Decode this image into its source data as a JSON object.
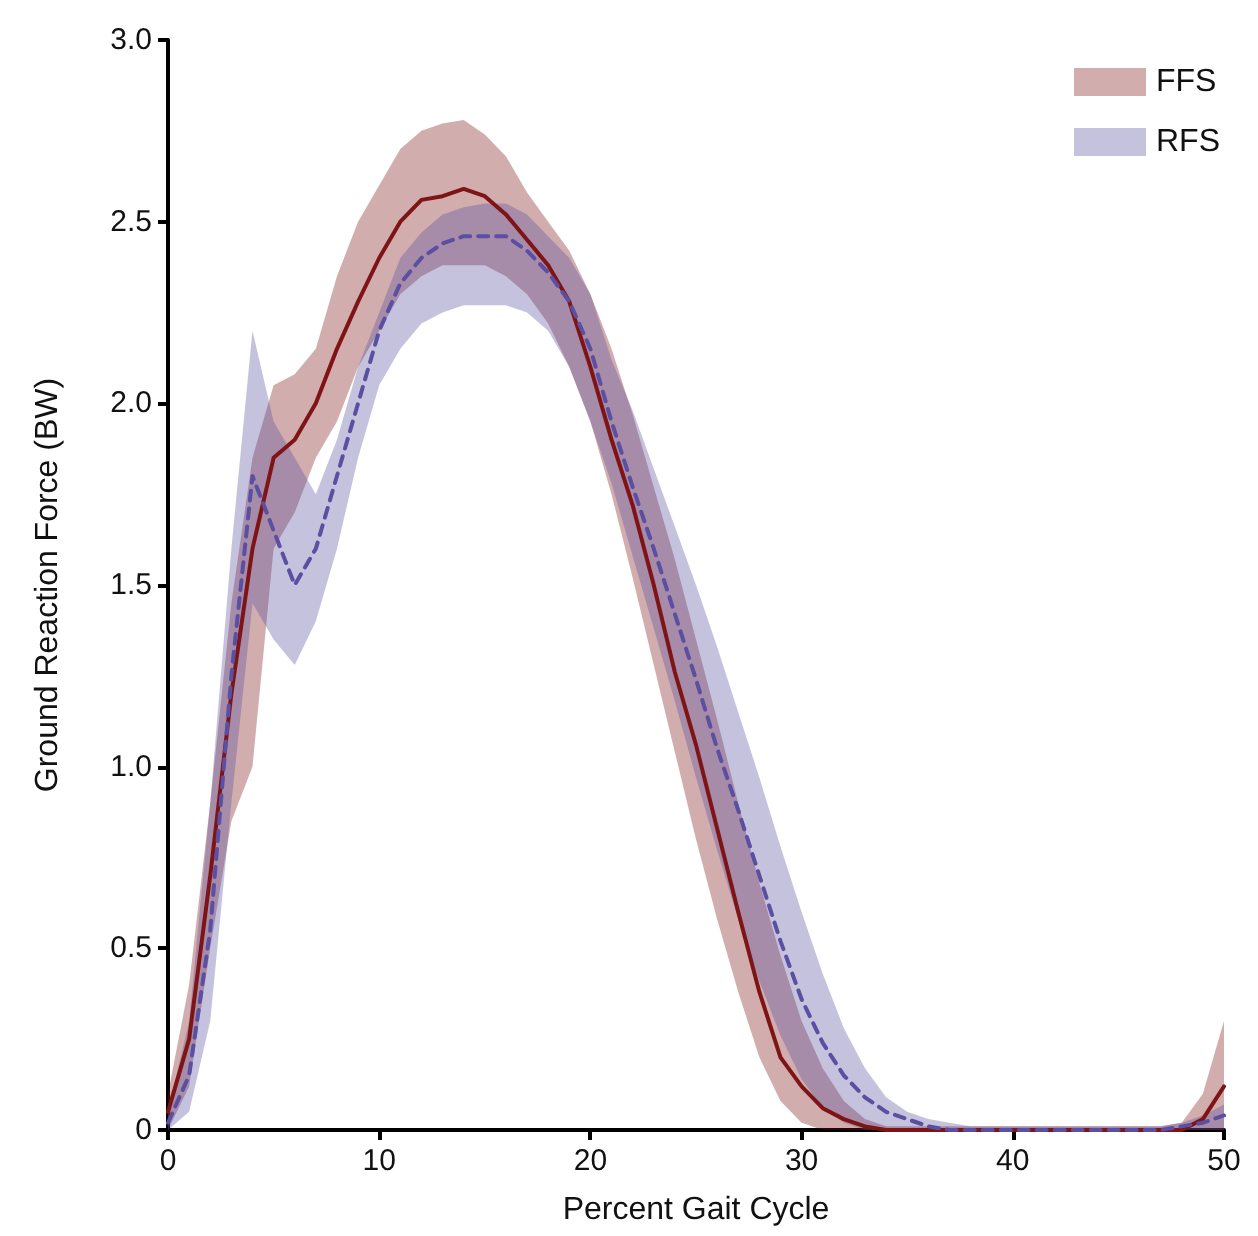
{
  "chart_data": {
    "type": "line",
    "xlabel": "Percent Gait Cycle",
    "ylabel": "Ground Reaction Force (BW)",
    "x": [
      0,
      1,
      2,
      3,
      4,
      5,
      6,
      7,
      8,
      9,
      10,
      11,
      12,
      13,
      14,
      15,
      16,
      17,
      18,
      19,
      20,
      21,
      22,
      23,
      24,
      25,
      26,
      27,
      28,
      29,
      30,
      31,
      32,
      33,
      34,
      35,
      36,
      37,
      38,
      39,
      40,
      41,
      42,
      43,
      44,
      45,
      46,
      47,
      48,
      49,
      50
    ],
    "series": [
      {
        "name": "FFS",
        "color": "#7f1416",
        "line_style": "solid",
        "values": [
          0.05,
          0.25,
          0.7,
          1.2,
          1.6,
          1.85,
          1.9,
          2.0,
          2.15,
          2.28,
          2.4,
          2.5,
          2.56,
          2.57,
          2.59,
          2.57,
          2.52,
          2.45,
          2.38,
          2.28,
          2.1,
          1.9,
          1.72,
          1.5,
          1.26,
          1.06,
          0.83,
          0.6,
          0.38,
          0.2,
          0.12,
          0.06,
          0.03,
          0.01,
          0,
          0,
          0,
          0,
          0,
          0,
          0,
          0,
          0,
          0,
          0,
          0,
          0,
          0,
          0,
          0.03,
          0.12
        ],
        "lower": [
          0,
          0.12,
          0.5,
          0.85,
          1.0,
          1.6,
          1.7,
          1.85,
          1.95,
          2.1,
          2.2,
          2.3,
          2.35,
          2.38,
          2.38,
          2.38,
          2.35,
          2.3,
          2.22,
          2.1,
          1.95,
          1.75,
          1.52,
          1.28,
          1.04,
          0.8,
          0.58,
          0.38,
          0.2,
          0.08,
          0.02,
          0,
          0,
          0,
          0,
          0,
          0,
          0,
          0,
          0,
          0,
          0,
          0,
          0,
          0,
          0,
          0,
          0,
          0,
          0,
          0
        ],
        "upper": [
          0.1,
          0.4,
          0.9,
          1.45,
          1.85,
          2.05,
          2.08,
          2.15,
          2.35,
          2.5,
          2.6,
          2.7,
          2.75,
          2.77,
          2.78,
          2.74,
          2.68,
          2.58,
          2.5,
          2.42,
          2.3,
          2.15,
          1.97,
          1.77,
          1.57,
          1.35,
          1.13,
          0.9,
          0.68,
          0.48,
          0.3,
          0.17,
          0.08,
          0.03,
          0.01,
          0.01,
          0.01,
          0.01,
          0.01,
          0.01,
          0.01,
          0.01,
          0.01,
          0.01,
          0.01,
          0.01,
          0.01,
          0.01,
          0.02,
          0.1,
          0.3
        ]
      },
      {
        "name": "RFS",
        "color": "#5a4fa0",
        "line_style": "dashed",
        "values": [
          0.02,
          0.15,
          0.55,
          1.25,
          1.8,
          1.65,
          1.5,
          1.6,
          1.8,
          2.0,
          2.2,
          2.33,
          2.4,
          2.44,
          2.46,
          2.46,
          2.46,
          2.42,
          2.36,
          2.28,
          2.15,
          1.95,
          1.77,
          1.6,
          1.42,
          1.24,
          1.05,
          0.88,
          0.7,
          0.52,
          0.36,
          0.24,
          0.15,
          0.09,
          0.05,
          0.03,
          0.01,
          0,
          0,
          0,
          0,
          0,
          0,
          0,
          0,
          0,
          0,
          0,
          0.01,
          0.02,
          0.04
        ],
        "lower": [
          0,
          0.05,
          0.3,
          0.9,
          1.45,
          1.35,
          1.28,
          1.4,
          1.6,
          1.85,
          2.05,
          2.15,
          2.22,
          2.25,
          2.27,
          2.27,
          2.27,
          2.25,
          2.2,
          2.1,
          1.95,
          1.78,
          1.58,
          1.38,
          1.18,
          0.97,
          0.77,
          0.58,
          0.41,
          0.26,
          0.14,
          0.06,
          0.02,
          0,
          0,
          0,
          0,
          0,
          0,
          0,
          0,
          0,
          0,
          0,
          0,
          0,
          0,
          0,
          0,
          0,
          0
        ],
        "upper": [
          0.05,
          0.3,
          0.9,
          1.6,
          2.2,
          1.95,
          1.85,
          1.75,
          1.9,
          2.1,
          2.25,
          2.4,
          2.47,
          2.52,
          2.54,
          2.55,
          2.55,
          2.52,
          2.46,
          2.4,
          2.3,
          2.12,
          1.98,
          1.82,
          1.66,
          1.5,
          1.33,
          1.15,
          0.97,
          0.78,
          0.6,
          0.43,
          0.28,
          0.17,
          0.09,
          0.05,
          0.03,
          0.02,
          0.01,
          0.01,
          0.01,
          0.01,
          0.01,
          0.01,
          0.01,
          0.01,
          0.01,
          0.01,
          0.02,
          0.04,
          0.07
        ]
      }
    ],
    "xlim": [
      0,
      50
    ],
    "xticks": [
      0,
      10,
      20,
      30,
      40,
      50
    ],
    "ylim": [
      0,
      3
    ],
    "yticks": [
      0,
      0.5,
      {
        "value": 1,
        "label": "1.0"
      },
      1.5,
      {
        "value": 2,
        "label": "2.0"
      },
      2.5,
      {
        "value": 3,
        "label": "3.0"
      }
    ],
    "grid": false,
    "legend": "top right",
    "marker": "none"
  }
}
